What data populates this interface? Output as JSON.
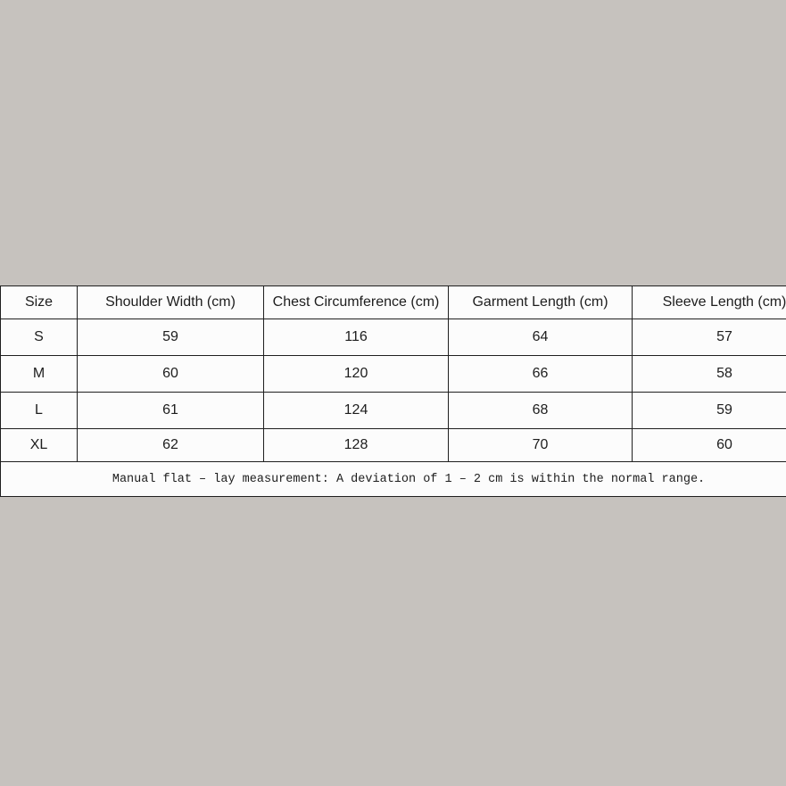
{
  "colors": {
    "page_background": "#c6c2be",
    "table_background": "#fcfcfc",
    "border": "#1f1f1f",
    "text": "#1d1d1d"
  },
  "chart_data": {
    "type": "table",
    "columns": [
      "Size",
      "Shoulder Width (cm)",
      "Chest Circumference (cm)",
      "Garment Length (cm)",
      "Sleeve Length (cm)"
    ],
    "rows": [
      [
        "S",
        59,
        116,
        64,
        57
      ],
      [
        "M",
        60,
        120,
        66,
        58
      ],
      [
        "L",
        61,
        124,
        68,
        59
      ],
      [
        "XL",
        62,
        128,
        70,
        60
      ]
    ],
    "note": "Manual flat – lay measurement: A deviation of 1 – 2 cm is within the normal range."
  }
}
